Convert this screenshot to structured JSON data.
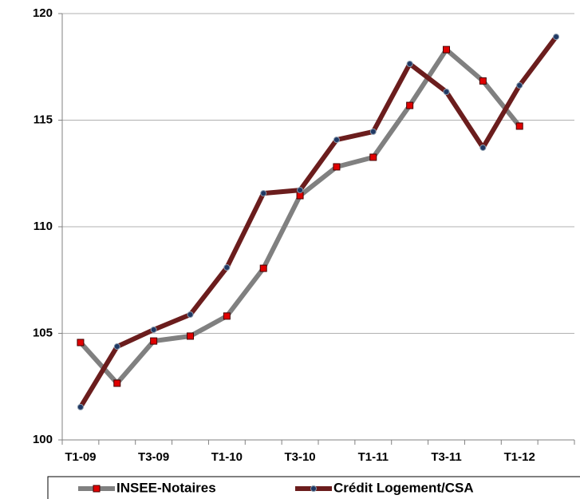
{
  "chart_data": {
    "type": "line",
    "categories": [
      "T1-09",
      null,
      "T3-09",
      null,
      "T1-10",
      null,
      "T3-10",
      null,
      "T1-11",
      null,
      "T3-11",
      null,
      "T1-12",
      null
    ],
    "series": [
      {
        "name": "INSEE-Notaires",
        "color": "#808080",
        "marker_color": "#e00000",
        "values": [
          104.57,
          102.66,
          104.64,
          104.87,
          105.81,
          108.05,
          111.46,
          112.81,
          113.26,
          115.69,
          118.31,
          116.84,
          114.72,
          null
        ]
      },
      {
        "name": "Crédit Logement/CSA",
        "color": "#6b1d1d",
        "marker_color": "#1f3864",
        "values": [
          101.54,
          104.38,
          105.17,
          105.88,
          108.09,
          111.57,
          111.72,
          114.08,
          114.46,
          117.64,
          116.33,
          113.71,
          116.63,
          118.91
        ]
      }
    ],
    "ylim": [
      100,
      120
    ],
    "yticks": [
      100,
      105,
      110,
      115,
      120
    ],
    "grid": true,
    "legend": "bottom"
  }
}
